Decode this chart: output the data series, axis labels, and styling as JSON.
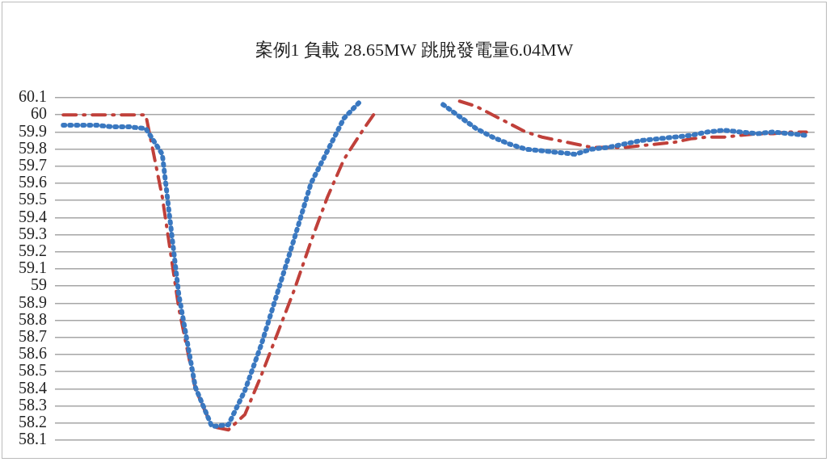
{
  "chart_data": {
    "type": "line",
    "title": "案例1 負載 28.65MW  跳脫發電量6.04MW",
    "categories": [
      null,
      null,
      null,
      null,
      null,
      null,
      null,
      null,
      null,
      null,
      null,
      null,
      null,
      null,
      null,
      null,
      null,
      null,
      null,
      null,
      null,
      null,
      null,
      null,
      null,
      null,
      null,
      null,
      null,
      null,
      null,
      null,
      null,
      null,
      null,
      null,
      null,
      null,
      null,
      null,
      null,
      null,
      null,
      null,
      null,
      null
    ],
    "series": [
      {
        "color": "#3a78c0",
        "line_style": "dotted",
        "values": [
          59.94,
          59.94,
          59.94,
          59.93,
          59.93,
          59.92,
          59.77,
          58.95,
          58.41,
          58.18,
          58.19,
          58.39,
          58.66,
          58.97,
          59.28,
          59.6,
          59.79,
          59.98,
          60.08,
          null,
          null,
          null,
          null,
          60.06,
          59.99,
          59.92,
          59.87,
          59.83,
          59.8,
          59.79,
          59.78,
          59.77,
          59.8,
          59.81,
          59.83,
          59.85,
          59.86,
          59.87,
          59.88,
          59.9,
          59.91,
          59.9,
          59.89,
          59.9,
          59.89,
          59.88
        ]
      },
      {
        "color": "#c0403a",
        "line_style": "dashed",
        "values": [
          60,
          60,
          60,
          60,
          60,
          60,
          59.52,
          58.87,
          58.4,
          58.18,
          58.16,
          58.25,
          58.48,
          58.73,
          58.98,
          59.26,
          59.52,
          59.74,
          59.89,
          60.03,
          null,
          null,
          null,
          null,
          60.08,
          60.05,
          60,
          59.95,
          59.9,
          59.87,
          59.85,
          59.83,
          59.81,
          59.81,
          59.81,
          59.82,
          59.83,
          59.84,
          59.86,
          59.87,
          59.87,
          59.88,
          59.89,
          59.89,
          59.9,
          59.9
        ]
      }
    ],
    "ylim": [
      58.1,
      60.1
    ],
    "yticks": [
      58.1,
      58.2,
      58.3,
      58.4,
      58.5,
      58.6,
      58.7,
      58.8,
      58.9,
      59,
      59.1,
      59.2,
      59.3,
      59.4,
      59.5,
      59.6,
      59.7,
      59.8,
      59.9,
      60,
      60.1
    ],
    "grid": "y",
    "tick_labels": "y",
    "marker": "none",
    "legend": false
  }
}
